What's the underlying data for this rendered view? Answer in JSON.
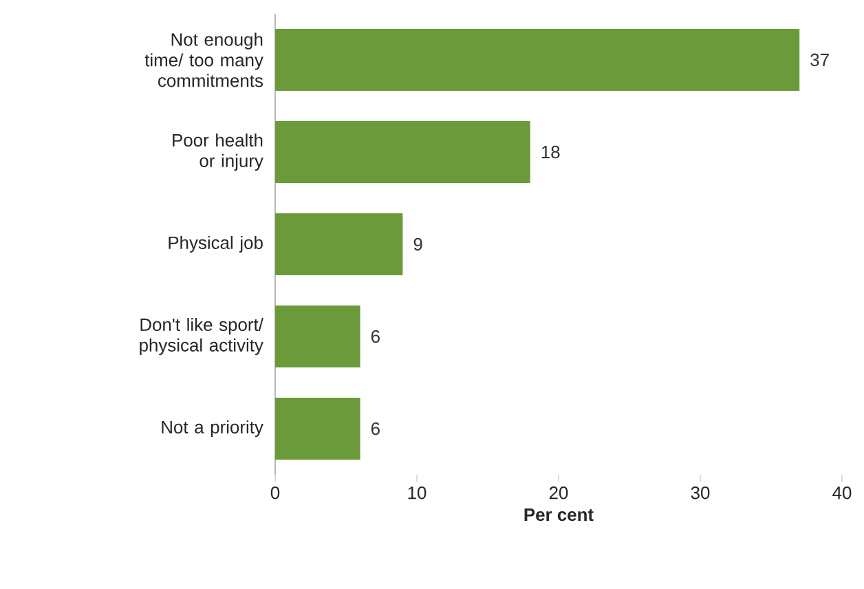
{
  "chart_data": {
    "type": "bar",
    "orientation": "horizontal",
    "xlabel": "Per cent",
    "categories": [
      "Not enough time/ too many commitments",
      "Poor health or injury",
      "Physical job",
      "Don't like sport/ physical activity",
      "Not a priority"
    ],
    "values": [
      37,
      18,
      9,
      6,
      6
    ],
    "color": "#6b9a3a",
    "xlim": [
      0,
      40
    ],
    "xticks": [
      0,
      10,
      20,
      30,
      40
    ],
    "data_labels": true,
    "grid": false
  }
}
